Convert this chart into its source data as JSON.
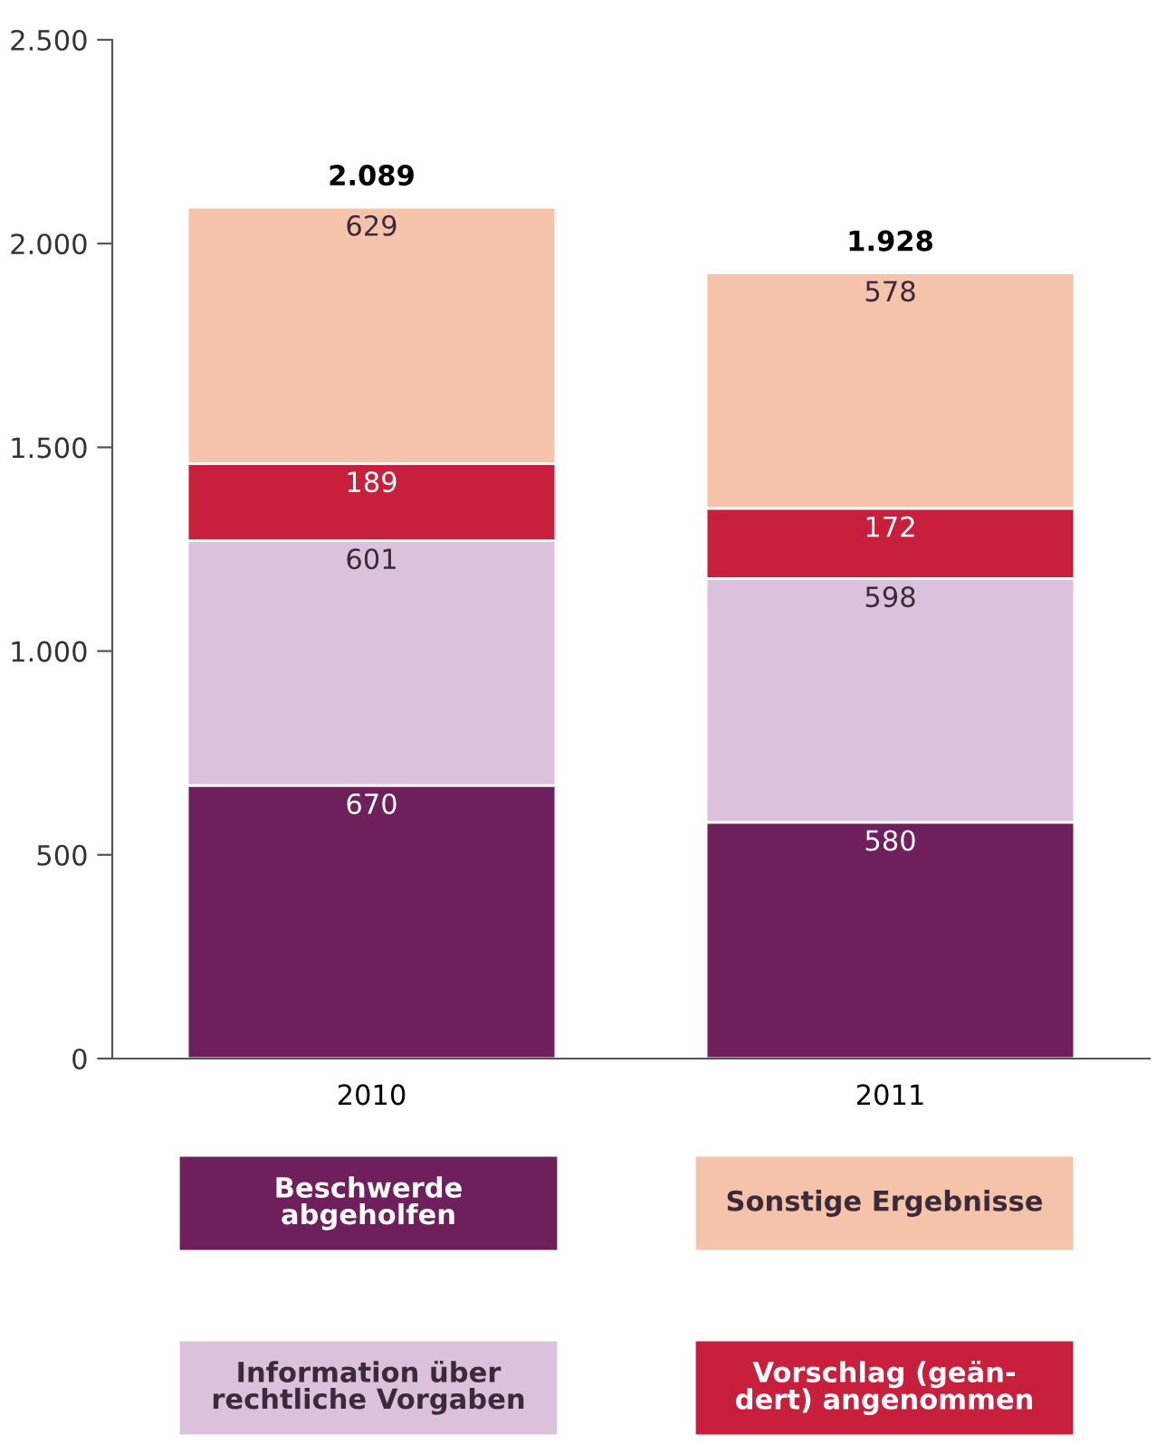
{
  "chart_data": {
    "type": "bar",
    "stacked": true,
    "categories": [
      "2010",
      "2011"
    ],
    "series": [
      {
        "name": "Beschwerde\nabgeholfen",
        "color": "#6e1f5c",
        "values": [
          670,
          580
        ]
      },
      {
        "name": "Information über\nrechtliche Vorgaben",
        "color": "#dcc1dc",
        "values": [
          601,
          598
        ]
      },
      {
        "name": "Vorschlag (geän-\ndert) angenommen",
        "color": "#c8203c",
        "values": [
          189,
          172
        ]
      },
      {
        "name": "Sonstige Ergebnisse",
        "color": "#f5c2aa",
        "values": [
          629,
          578
        ]
      }
    ],
    "data_labels": true,
    "totals": [
      "2.089",
      "1.928"
    ],
    "ylim": [
      0,
      2500
    ],
    "yticks": [
      0,
      500,
      {
        "value": 1000,
        "label": "1.000"
      },
      {
        "value": 1500,
        "label": "1.500"
      },
      {
        "value": 2000,
        "label": "2.000"
      },
      {
        "value": 2500,
        "label": "2.500"
      }
    ],
    "grid": false,
    "legend": "bottom"
  }
}
